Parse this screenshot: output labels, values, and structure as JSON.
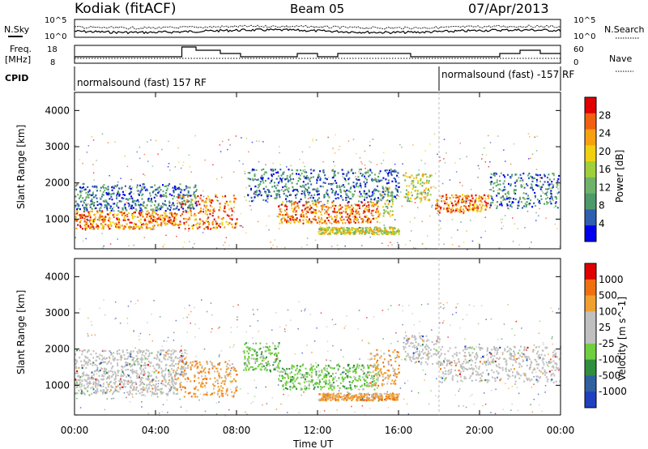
{
  "header": {
    "station": "Kodiak (fitACF)",
    "beam": "Beam 05",
    "date": "07/Apr/2013"
  },
  "strips": {
    "nsky_label": "N.Sky",
    "nsky_ticks": [
      "10^5",
      "10^0"
    ],
    "nsearch_label": "N.Search",
    "nsearch_ticks": [
      "10^5",
      "10^0"
    ],
    "freq_label": "Freq.",
    "freq_unit": "[MHz]",
    "freq_ticks": [
      "18",
      "8"
    ],
    "nave_label": "Nave",
    "nave_ticks": [
      "60",
      "0"
    ],
    "cpid_label": "CPID",
    "cpid_segments": [
      {
        "label": "normalsound (fast) 157 RF",
        "start_hour": 0,
        "end_hour": 18
      },
      {
        "label": "normalsound (fast) -157 RF",
        "start_hour": 18,
        "end_hour": 24
      }
    ]
  },
  "x_axis": {
    "title": "Time UT",
    "ticks": [
      "00:00",
      "04:00",
      "08:00",
      "12:00",
      "16:00",
      "20:00",
      "00:00"
    ],
    "range_hours": [
      0,
      24
    ]
  },
  "chart_data": [
    {
      "type": "heatmap",
      "panel": "power",
      "ylabel": "Slant Range [km]",
      "yticks": [
        "4000",
        "3000",
        "2000",
        "1000"
      ],
      "ylim": [
        180,
        4500
      ],
      "colorbar": {
        "label": "Power [dB]",
        "ticks": [
          "28",
          "24",
          "20",
          "16",
          "12",
          "8",
          "4"
        ],
        "range": [
          0,
          30
        ],
        "colors": [
          "#0000ee",
          "#2f5fb0",
          "#4f9a6a",
          "#6fb36a",
          "#9fcf3a",
          "#f0d010",
          "#f7a010",
          "#f06010",
          "#e00000"
        ]
      },
      "bands": [
        {
          "t0": 0.0,
          "t1": 4.0,
          "r0": 750,
          "r1": 1250,
          "level": "high"
        },
        {
          "t0": 4.0,
          "t1": 5.0,
          "r0": 850,
          "r1": 1200,
          "level": "high"
        },
        {
          "t0": 5.0,
          "t1": 8.0,
          "r0": 750,
          "r1": 1700,
          "level": "high"
        },
        {
          "t0": 10.0,
          "t1": 15.0,
          "r0": 900,
          "r1": 1500,
          "level": "high"
        },
        {
          "t0": 15.0,
          "t1": 15.7,
          "r0": 1100,
          "r1": 1900,
          "level": "mid"
        },
        {
          "t0": 0.0,
          "t1": 6.0,
          "r0": 1250,
          "r1": 2000,
          "level": "low"
        },
        {
          "t0": 12.0,
          "t1": 16.0,
          "r0": 600,
          "r1": 800,
          "level": "mid"
        },
        {
          "t0": 16.2,
          "t1": 17.6,
          "r0": 1500,
          "r1": 2300,
          "level": "mid"
        },
        {
          "t0": 17.8,
          "t1": 20.5,
          "r0": 1200,
          "r1": 1700,
          "level": "high"
        },
        {
          "t0": 20.5,
          "t1": 23.9,
          "r0": 1300,
          "r1": 2300,
          "level": "low"
        },
        {
          "t0": 8.5,
          "t1": 16.0,
          "r0": 1500,
          "r1": 2400,
          "level": "low"
        }
      ]
    },
    {
      "type": "heatmap",
      "panel": "velocity",
      "ylabel": "Slant Range [km]",
      "yticks": [
        "4000",
        "3000",
        "2000",
        "1000"
      ],
      "ylim": [
        180,
        4500
      ],
      "colorbar": {
        "label": "Velocity [m s^-1]",
        "ticks": [
          "1000",
          "500",
          "100",
          "25",
          "-25",
          "-100",
          "-500",
          "-1000"
        ],
        "range": [
          -1200,
          1200
        ],
        "colors": [
          "#2040c0",
          "#3060a0",
          "#2f8f3f",
          "#6fcf3f",
          "#c0c0c0",
          "#c0c0c0",
          "#f0a030",
          "#f07010",
          "#e00000"
        ]
      },
      "bands": [
        {
          "t0": 0.0,
          "t1": 5.0,
          "r0": 750,
          "r1": 1300,
          "level": "gray"
        },
        {
          "t0": 5.0,
          "t1": 8.0,
          "r0": 700,
          "r1": 1700,
          "level": "orange"
        },
        {
          "t0": 8.3,
          "t1": 10.2,
          "r0": 1400,
          "r1": 2200,
          "level": "green"
        },
        {
          "t0": 10.0,
          "t1": 15.0,
          "r0": 900,
          "r1": 1600,
          "level": "green"
        },
        {
          "t0": 14.5,
          "t1": 16.0,
          "r0": 1000,
          "r1": 2000,
          "level": "orange"
        },
        {
          "t0": 12.0,
          "t1": 16.0,
          "r0": 600,
          "r1": 800,
          "level": "orange"
        },
        {
          "t0": 16.2,
          "t1": 18.0,
          "r0": 1600,
          "r1": 2400,
          "level": "gray"
        },
        {
          "t0": 18.0,
          "t1": 24.0,
          "r0": 1100,
          "r1": 2100,
          "level": "gray"
        },
        {
          "t0": 0.0,
          "t1": 5.5,
          "r0": 1300,
          "r1": 2000,
          "level": "gray"
        }
      ]
    }
  ]
}
